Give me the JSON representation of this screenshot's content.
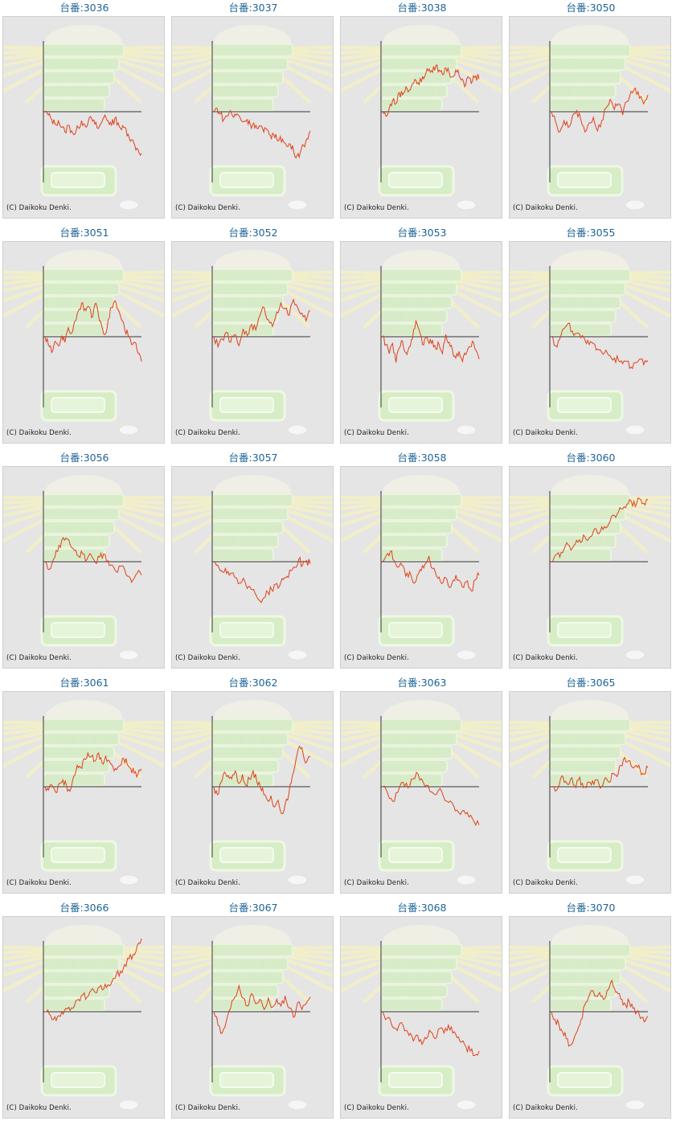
{
  "copyright": "(C) Daikoku Denki.",
  "colors": {
    "title": "#1e6496",
    "line": "#e0401a",
    "axis": "#333333",
    "frame_bg": "#e5e5e5"
  },
  "machines": [
    {
      "label": "台番:3036",
      "series": [
        0.0,
        -0.15,
        -0.35,
        -0.55,
        -0.4,
        -0.7,
        -0.9,
        -0.6,
        -0.85,
        -1.0,
        -0.7,
        -0.4,
        -0.6,
        -0.45,
        -0.3,
        -0.55,
        -0.75,
        -0.5,
        -0.15,
        -0.4,
        -0.6,
        -0.3,
        -0.5,
        -0.8,
        -0.7,
        -1.0,
        -1.25,
        -1.5,
        -1.7,
        -1.85
      ]
    },
    {
      "label": "台番:3037",
      "series": [
        0.0,
        0.15,
        -0.1,
        -0.35,
        -0.2,
        0.05,
        -0.25,
        -0.1,
        -0.3,
        -0.45,
        -0.35,
        -0.6,
        -0.5,
        -0.75,
        -0.65,
        -0.9,
        -0.8,
        -1.05,
        -1.0,
        -1.25,
        -1.1,
        -1.35,
        -1.55,
        -1.45,
        -1.75,
        -1.95,
        -1.8,
        -1.5,
        -1.2,
        -0.85
      ]
    },
    {
      "label": "台番:3038",
      "series": [
        0.0,
        -0.2,
        0.15,
        0.5,
        0.35,
        0.85,
        0.75,
        1.1,
        0.95,
        1.25,
        1.4,
        1.2,
        1.55,
        1.7,
        1.9,
        1.75,
        2.05,
        1.85,
        1.65,
        1.95,
        1.75,
        1.55,
        1.85,
        1.6,
        1.45,
        1.2,
        1.5,
        1.35,
        1.6,
        1.45
      ]
    },
    {
      "label": "台番:3050",
      "series": [
        0.0,
        -0.45,
        -0.9,
        -0.4,
        -0.7,
        -0.2,
        0.05,
        -0.35,
        -0.9,
        -0.5,
        -0.25,
        -0.85,
        -0.4,
        0.15,
        0.55,
        0.1,
        0.35,
        -0.15,
        0.45,
        0.9,
        1.05,
        0.6,
        0.35,
        0.75
      ]
    },
    {
      "label": "台番:3051",
      "series": [
        0.0,
        -0.35,
        -0.7,
        -0.2,
        -0.4,
        0.05,
        -0.25,
        0.4,
        0.15,
        0.7,
        1.15,
        1.5,
        1.25,
        1.35,
        0.85,
        1.45,
        1.05,
        0.5,
        0.1,
        0.75,
        1.3,
        1.6,
        1.2,
        0.75,
        0.3,
        0.05,
        -0.35,
        -0.25,
        -0.75,
        -1.1
      ]
    },
    {
      "label": "台番:3052",
      "series": [
        0.0,
        -0.45,
        -0.1,
        0.2,
        -0.25,
        0.1,
        -0.4,
        0.35,
        0.05,
        0.55,
        0.3,
        0.95,
        1.3,
        0.75,
        0.45,
        1.1,
        1.5,
        1.25,
        0.95,
        1.65,
        1.3,
        1.05,
        0.7,
        1.15
      ]
    },
    {
      "label": "台番:3053",
      "series": [
        0.0,
        -0.35,
        -0.75,
        -0.3,
        -1.15,
        -0.5,
        -0.2,
        -0.7,
        -0.45,
        -0.1,
        0.7,
        0.3,
        -0.35,
        -0.05,
        -0.3,
        -0.15,
        -0.55,
        -0.35,
        -0.75,
        0.1,
        -0.25,
        -0.6,
        -0.95,
        -0.65,
        -1.1,
        -0.8,
        -0.45,
        -0.2,
        -0.6,
        -1.0
      ]
    },
    {
      "label": "台番:3055",
      "series": [
        0.0,
        -0.4,
        -0.1,
        0.35,
        0.6,
        0.25,
        0.15,
        -0.05,
        -0.15,
        -0.35,
        -0.3,
        -0.55,
        -0.7,
        -0.6,
        -0.85,
        -0.95,
        -1.05,
        -1.2,
        -1.1,
        -1.35,
        -1.15,
        -1.0,
        -1.25,
        -1.05
      ]
    },
    {
      "label": "台番:3056",
      "series": [
        0.0,
        -0.35,
        0.1,
        0.45,
        0.95,
        1.05,
        0.75,
        0.5,
        0.25,
        0.35,
        0.1,
        0.3,
        -0.05,
        0.2,
        0.35,
        0.05,
        -0.15,
        -0.45,
        -0.2,
        -0.35,
        -0.65,
        -0.8,
        -0.5,
        -0.6
      ]
    },
    {
      "label": "台番:3057",
      "series": [
        0.0,
        -0.15,
        -0.4,
        -0.3,
        -0.6,
        -0.5,
        -0.75,
        -0.95,
        -0.85,
        -1.1,
        -1.25,
        -1.5,
        -1.75,
        -1.6,
        -1.35,
        -1.25,
        -1.0,
        -1.1,
        -0.8,
        -0.65,
        -0.4,
        -0.25,
        0.1,
        -0.15,
        0.05,
        -0.1
      ]
    },
    {
      "label": "台番:3058",
      "series": [
        0.0,
        0.3,
        0.45,
        0.05,
        -0.25,
        -0.15,
        -0.65,
        -0.45,
        -0.95,
        -0.6,
        -0.4,
        -0.1,
        0.25,
        -0.3,
        -0.65,
        -0.9,
        -0.7,
        -1.05,
        -0.95,
        -0.6,
        -0.85,
        -1.15,
        -0.85,
        -1.3,
        -0.8,
        -0.6
      ]
    },
    {
      "label": "台番:3060",
      "series": [
        0.0,
        0.3,
        0.2,
        0.55,
        0.75,
        0.6,
        0.95,
        0.85,
        1.1,
        1.05,
        1.35,
        1.25,
        1.55,
        1.5,
        1.8,
        2.05,
        2.2,
        2.35,
        2.55,
        2.7,
        2.45,
        2.8,
        2.6,
        2.75
      ]
    },
    {
      "label": "台番:3061",
      "series": [
        0.0,
        -0.15,
        0.05,
        -0.25,
        0.15,
        0.3,
        0.05,
        -0.2,
        0.45,
        0.95,
        0.85,
        1.25,
        1.5,
        1.35,
        1.15,
        1.5,
        1.05,
        1.35,
        1.15,
        0.9,
        0.75,
        0.95,
        1.25,
        1.0,
        0.8,
        0.6,
        0.55,
        0.8
      ]
    },
    {
      "label": "台番:3062",
      "series": [
        0.0,
        -0.35,
        0.2,
        0.65,
        0.5,
        0.35,
        0.7,
        0.15,
        0.55,
        0.05,
        0.35,
        0.7,
        0.25,
        0.0,
        -0.35,
        -0.6,
        -0.4,
        -0.9,
        -0.6,
        -1.2,
        -0.75,
        -0.35,
        0.5,
        1.2,
        1.8,
        1.45,
        1.1,
        1.35
      ]
    },
    {
      "label": "台番:3063",
      "series": [
        0.0,
        -0.3,
        -0.65,
        -0.25,
        0.2,
        -0.05,
        0.35,
        0.55,
        0.2,
        0.05,
        -0.3,
        -0.15,
        -0.45,
        -0.7,
        -0.85,
        -1.15,
        -1.05,
        -1.35,
        -1.55,
        -1.7
      ]
    },
    {
      "label": "台番:3065",
      "series": [
        0.0,
        -0.2,
        0.05,
        0.45,
        0.15,
        0.35,
        0.05,
        0.3,
        0.15,
        -0.05,
        0.2,
        0.1,
        0.3,
        0.0,
        0.4,
        0.2,
        0.6,
        0.45,
        0.95,
        1.3,
        1.15,
        0.85,
        0.95,
        0.75,
        0.55,
        0.85
      ]
    },
    {
      "label": "台番:3066",
      "series": [
        0.0,
        -0.1,
        -0.35,
        -0.2,
        0.0,
        0.15,
        0.05,
        0.25,
        0.55,
        0.75,
        0.65,
        0.95,
        0.85,
        1.1,
        1.0,
        1.2,
        1.35,
        1.65,
        1.8,
        2.1,
        2.35,
        2.55,
        2.95,
        3.25
      ]
    },
    {
      "label": "台番:3067",
      "series": [
        0.0,
        -0.6,
        -0.95,
        -0.4,
        0.15,
        0.65,
        1.15,
        0.6,
        0.25,
        0.8,
        0.35,
        0.55,
        0.1,
        0.6,
        0.2,
        0.55,
        0.25,
        0.7,
        0.15,
        -0.25,
        0.4,
        0.1,
        0.35,
        0.65
      ]
    },
    {
      "label": "台番:3068",
      "series": [
        0.0,
        -0.3,
        -0.55,
        -0.75,
        -0.5,
        -0.85,
        -1.05,
        -1.3,
        -1.05,
        -1.45,
        -1.2,
        -0.9,
        -1.2,
        -0.75,
        -0.95,
        -0.6,
        -0.95,
        -1.15,
        -1.35,
        -1.55,
        -1.75,
        -1.95,
        -1.75
      ]
    },
    {
      "label": "台番:3070",
      "series": [
        0.0,
        -0.35,
        -0.55,
        -0.9,
        -1.2,
        -1.5,
        -1.25,
        -0.85,
        -0.35,
        0.3,
        0.65,
        0.95,
        0.7,
        0.85,
        0.55,
        0.95,
        1.3,
        1.05,
        0.8,
        0.55,
        0.3,
        0.45,
        0.15,
        0.0,
        -0.3,
        -0.45,
        -0.2
      ]
    }
  ]
}
